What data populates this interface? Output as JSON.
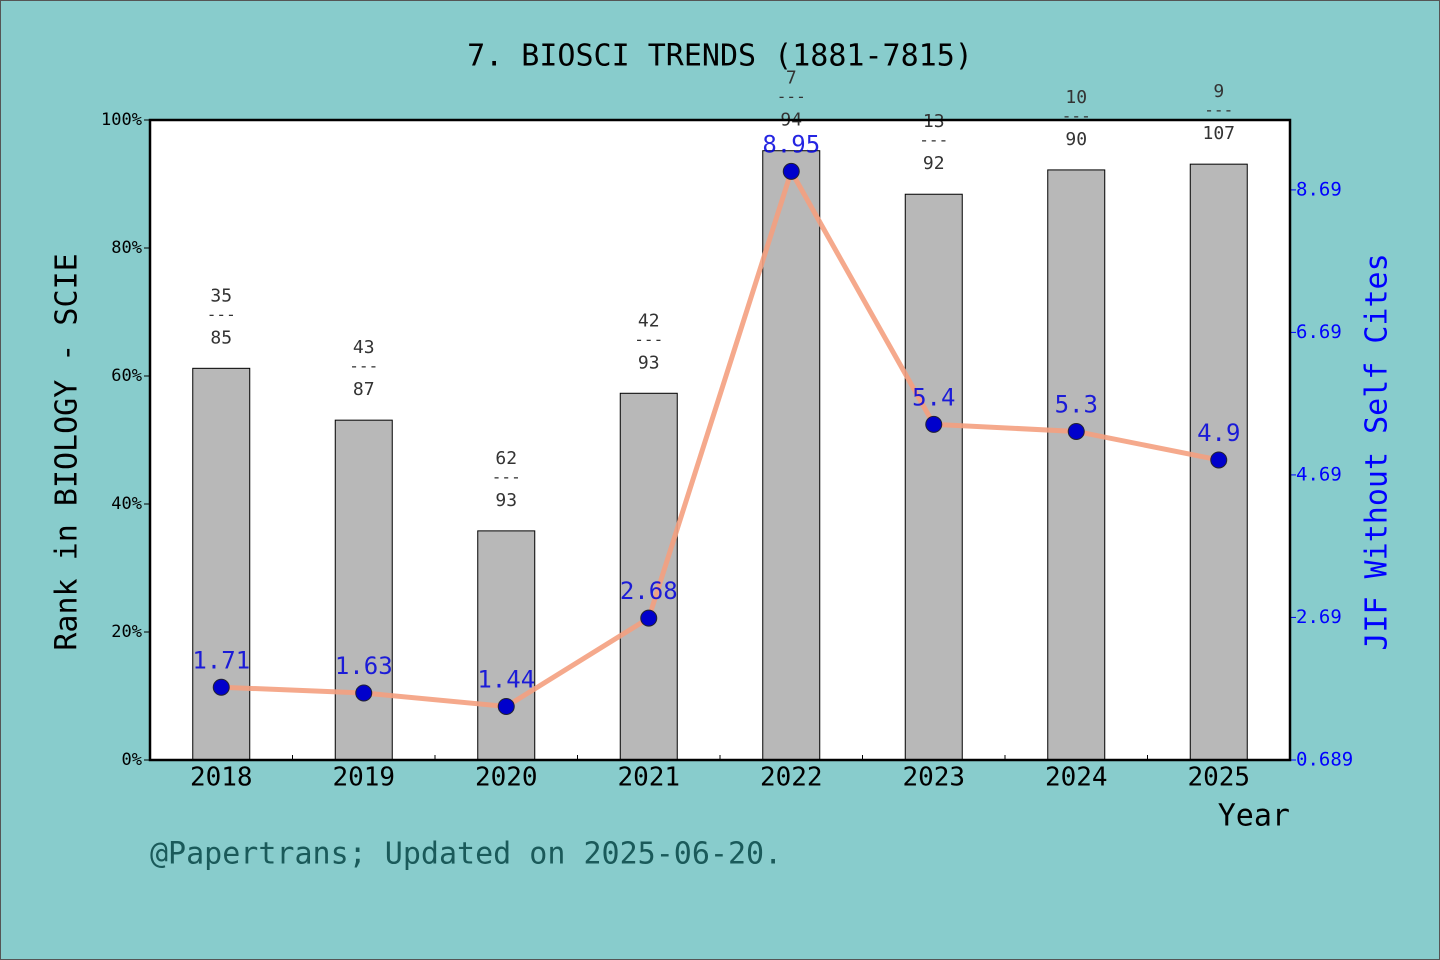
{
  "chart_data": {
    "type": "bar",
    "title": "7. BIOSCI TRENDS (1881-7815)",
    "ylabel": "Rank in BIOLOGY - SCIE",
    "y2label": "JIF Without Self Cites",
    "xlabel": "Year",
    "footer": "@Papertrans; Updated on 2025-06-20.",
    "categories": [
      "2018",
      "2019",
      "2020",
      "2021",
      "2022",
      "2023",
      "2024",
      "2025"
    ],
    "ylim": [
      0,
      100
    ],
    "yticks": [
      {
        "value": 0,
        "label": "0%"
      },
      {
        "value": 20,
        "label": "20%"
      },
      {
        "value": 40,
        "label": "40%"
      },
      {
        "value": 60,
        "label": "60%"
      },
      {
        "value": 80,
        "label": "80%"
      },
      {
        "value": 100,
        "label": "100%"
      }
    ],
    "y2lim": [
      0.689,
      9.671
    ],
    "y2ticks": [
      0.689,
      2.69,
      4.69,
      6.69,
      8.69
    ],
    "ranks": [
      35,
      43,
      62,
      42,
      7,
      13,
      10,
      9
    ],
    "totals": [
      85,
      87,
      93,
      93,
      94,
      92,
      90,
      107
    ],
    "rank_separator": "---",
    "series": [
      {
        "type": "bar",
        "color": "#b8b8b8",
        "values": [
          61.2,
          53.1,
          35.8,
          57.3,
          95.2,
          88.4,
          92.2,
          93.1
        ]
      },
      {
        "type": "line",
        "axis": "y2",
        "color": "#f4a080",
        "marker_color": "#0000cc",
        "values": [
          1.71,
          1.63,
          1.44,
          2.68,
          8.95,
          5.4,
          5.3,
          4.9
        ]
      }
    ]
  }
}
